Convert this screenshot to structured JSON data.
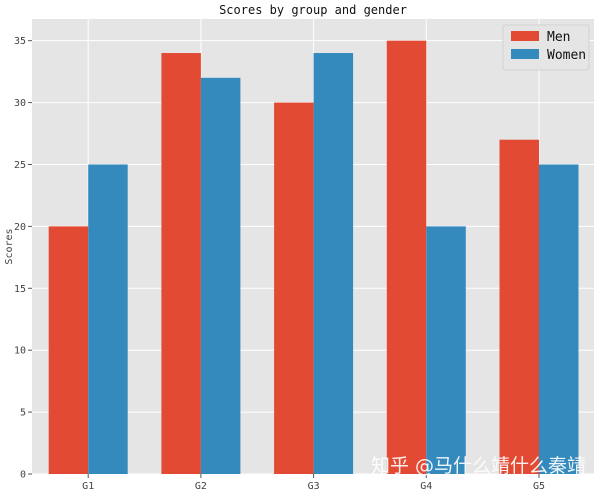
{
  "chart_data": {
    "type": "bar",
    "title": "Scores by group and gender",
    "xlabel": "",
    "ylabel": "Scores",
    "categories": [
      "G1",
      "G2",
      "G3",
      "G4",
      "G5"
    ],
    "series": [
      {
        "name": "Men",
        "values": [
          20,
          34,
          30,
          35,
          27
        ],
        "color": "#E24A33"
      },
      {
        "name": "Women",
        "values": [
          25,
          32,
          34,
          20,
          25
        ],
        "color": "#348ABD"
      }
    ],
    "ylim": [
      0,
      36.75
    ],
    "yticks": [
      "0",
      "5",
      "10",
      "15",
      "20",
      "25",
      "30",
      "35"
    ],
    "grid": true,
    "legend_position": "top-right",
    "background_color": "#E5E5E5",
    "grid_color": "#FFFFFF"
  },
  "watermark": "知乎 @马什么靖什么秦靖"
}
